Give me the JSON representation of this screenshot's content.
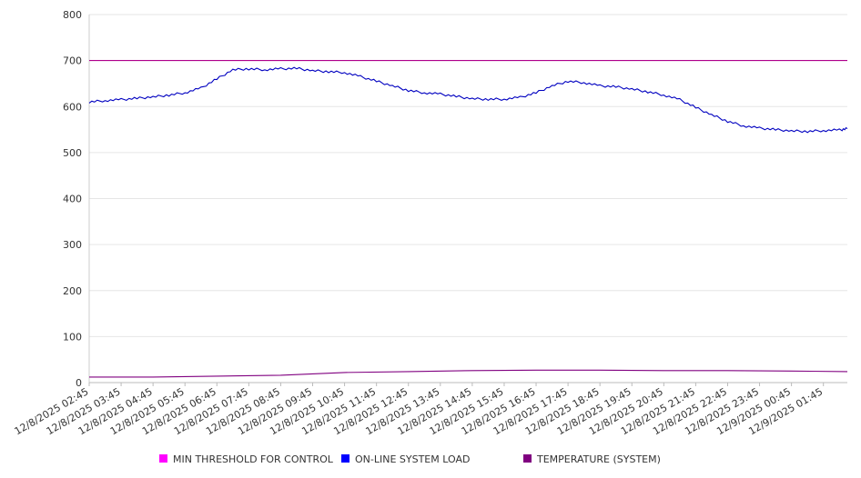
{
  "chart_data": {
    "type": "line",
    "title": "",
    "xlabel": "",
    "ylabel": "",
    "ylim": [
      0,
      800
    ],
    "yticks": [
      0,
      100,
      200,
      300,
      400,
      500,
      600,
      700,
      800
    ],
    "grid": "horizontal",
    "legend_position": "bottom",
    "xtick_labels": [
      "12/8/2025 02:45",
      "12/8/2025 03:45",
      "12/8/2025 04:45",
      "12/8/2025 05:45",
      "12/8/2025 06:45",
      "12/8/2025 07:45",
      "12/8/2025 08:45",
      "12/8/2025 09:45",
      "12/8/2025 10:45",
      "12/8/2025 11:45",
      "12/8/2025 12:45",
      "12/8/2025 13:45",
      "12/8/2025 14:45",
      "12/8/2025 15:45",
      "12/8/2025 16:45",
      "12/8/2025 17:45",
      "12/8/2025 18:45",
      "12/8/2025 19:45",
      "12/8/2025 20:45",
      "12/8/2025 21:45",
      "12/8/2025 22:45",
      "12/8/2025 23:45",
      "12/9/2025 00:45",
      "12/9/2025 01:45"
    ],
    "series": [
      {
        "name": "MIN THRESHOLD FOR CONTROL",
        "color": "#b0008c",
        "legend_color": "#ff00ff",
        "x": [
          "12/8/2025 02:45",
          "12/9/2025 02:30"
        ],
        "values": [
          700,
          700
        ]
      },
      {
        "name": "ON-LINE SYSTEM LOAD",
        "color": "#0000c0",
        "legend_color": "#0000ff",
        "x": [
          "12/8/2025 02:45",
          "12/8/2025 03:15",
          "12/8/2025 03:45",
          "12/8/2025 04:15",
          "12/8/2025 04:45",
          "12/8/2025 05:15",
          "12/8/2025 05:45",
          "12/8/2025 06:15",
          "12/8/2025 06:45",
          "12/8/2025 07:15",
          "12/8/2025 07:45",
          "12/8/2025 08:15",
          "12/8/2025 08:45",
          "12/8/2025 09:15",
          "12/8/2025 09:45",
          "12/8/2025 10:15",
          "12/8/2025 10:45",
          "12/8/2025 11:15",
          "12/8/2025 11:45",
          "12/8/2025 12:15",
          "12/8/2025 12:45",
          "12/8/2025 13:15",
          "12/8/2025 13:45",
          "12/8/2025 14:15",
          "12/8/2025 14:45",
          "12/8/2025 15:15",
          "12/8/2025 15:45",
          "12/8/2025 16:15",
          "12/8/2025 16:45",
          "12/8/2025 17:15",
          "12/8/2025 17:45",
          "12/8/2025 18:15",
          "12/8/2025 18:45",
          "12/8/2025 19:15",
          "12/8/2025 19:45",
          "12/8/2025 20:15",
          "12/8/2025 20:45",
          "12/8/2025 21:15",
          "12/8/2025 21:45",
          "12/8/2025 22:15",
          "12/8/2025 22:45",
          "12/8/2025 23:15",
          "12/8/2025 23:45",
          "12/9/2025 00:15",
          "12/9/2025 00:45",
          "12/9/2025 01:15",
          "12/9/2025 01:45",
          "12/9/2025 02:15",
          "12/9/2025 02:30"
        ],
        "values": [
          610,
          613,
          615,
          618,
          621,
          625,
          630,
          640,
          660,
          680,
          682,
          680,
          682,
          683,
          678,
          676,
          674,
          665,
          655,
          645,
          635,
          630,
          627,
          622,
          617,
          616,
          616,
          620,
          630,
          645,
          655,
          652,
          645,
          643,
          638,
          632,
          625,
          615,
          598,
          582,
          568,
          558,
          553,
          550,
          547,
          546,
          548,
          549,
          552
        ]
      },
      {
        "name": "TEMPERATURE (SYSTEM)",
        "color": "#800080",
        "legend_color": "#800080",
        "x": [
          "12/8/2025 02:45",
          "12/8/2025 04:45",
          "12/8/2025 06:45",
          "12/8/2025 08:45",
          "12/8/2025 09:45",
          "12/8/2025 10:45",
          "12/8/2025 12:45",
          "12/8/2025 14:45",
          "12/8/2025 16:45",
          "12/8/2025 18:45",
          "12/8/2025 20:45",
          "12/8/2025 22:45",
          "12/9/2025 00:45",
          "12/9/2025 02:30"
        ],
        "values": [
          12,
          12,
          14,
          16,
          19,
          22,
          24,
          26,
          27,
          27,
          26,
          26,
          25,
          24
        ]
      }
    ]
  }
}
